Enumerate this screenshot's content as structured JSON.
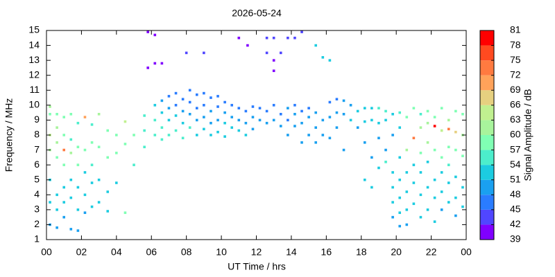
{
  "chart_data": {
    "type": "scatter",
    "title": "2026-05-24",
    "x_label": "UT Time / hrs",
    "y_label": "Frequency / MHz",
    "colorbar_label": "Signal Amplitude / dB",
    "xlim": [
      0,
      24
    ],
    "ylim": [
      1,
      15
    ],
    "xticks": [
      {
        "value": 0,
        "label": "00"
      },
      {
        "value": 2,
        "label": "02"
      },
      {
        "value": 4,
        "label": "04"
      },
      {
        "value": 6,
        "label": "06"
      },
      {
        "value": 8,
        "label": "08"
      },
      10,
      12,
      14,
      16,
      18,
      20,
      22,
      {
        "value": 24,
        "label": "00"
      }
    ],
    "yticks": [
      1,
      2,
      3,
      4,
      5,
      6,
      7,
      8,
      9,
      10,
      11,
      12,
      13,
      14,
      15
    ],
    "colorbar_ticks": [
      39,
      42,
      45,
      48,
      51,
      54,
      57,
      60,
      63,
      66,
      69,
      72,
      75,
      78,
      81
    ],
    "colors": [
      "#8000ff",
      "#5046ff",
      "#2a7cff",
      "#1aa0f0",
      "#1ccce0",
      "#4ceecc",
      "#80ffb4",
      "#a8f49c",
      "#c0f090",
      "#e6d080",
      "#ffa25a",
      "#ff7a40",
      "#ff4a20",
      "#ff0000"
    ],
    "x": [
      0.2,
      0.2,
      0.2,
      0.2,
      0.2,
      0.2,
      0.2,
      0.6,
      0.6,
      0.6,
      0.6,
      0.6,
      0.6,
      0.6,
      1.0,
      1.0,
      1.0,
      1.0,
      1.0,
      1.0,
      1.0,
      1.4,
      1.4,
      1.4,
      1.4,
      1.4,
      1.4,
      1.8,
      1.8,
      1.8,
      1.8,
      1.8,
      1.8,
      2.2,
      2.2,
      2.2,
      2.2,
      2.2,
      2.6,
      2.6,
      2.6,
      2.6,
      2.6,
      3.0,
      3.0,
      3.0,
      3.0,
      3.5,
      3.5,
      3.5,
      3.5,
      4.0,
      4.0,
      4.0,
      4.5,
      4.5,
      4.5,
      5.0,
      5.0,
      5.6,
      5.6,
      5.6,
      6.2,
      6.2,
      6.2,
      6.6,
      6.6,
      6.6,
      6.6,
      7.0,
      7.0,
      7.0,
      7.0,
      7.4,
      7.4,
      7.4,
      7.4,
      7.8,
      7.8,
      7.8,
      7.8,
      8.2,
      8.2,
      8.2,
      8.2,
      8.6,
      8.6,
      8.6,
      8.6,
      9.0,
      9.0,
      9.0,
      9.0,
      9.4,
      9.4,
      9.4,
      9.4,
      9.8,
      9.8,
      9.8,
      9.8,
      10.2,
      10.2,
      10.2,
      10.2,
      10.6,
      10.6,
      10.6,
      11.0,
      11.0,
      11.0,
      11.4,
      11.4,
      11.4,
      11.8,
      11.8,
      11.8,
      12.2,
      12.2,
      12.6,
      12.6,
      12.6,
      12.6,
      13.0,
      13.0,
      13.0,
      13.0,
      13.0,
      13.4,
      13.4,
      13.4,
      13.8,
      13.8,
      13.8,
      13.8,
      14.2,
      14.2,
      14.2,
      14.2,
      14.6,
      14.6,
      14.6,
      14.6,
      15.0,
      15.0,
      15.0,
      15.4,
      15.4,
      15.4,
      15.4,
      15.8,
      15.8,
      15.8,
      16.2,
      16.2,
      16.2,
      16.2,
      16.6,
      16.6,
      16.6,
      17.0,
      17.0,
      17.0,
      17.4,
      17.4,
      17.8,
      17.8,
      5.8,
      5.8,
      6.2,
      6.2,
      6.6,
      8.0,
      9.0,
      11.0,
      11.5,
      18.2,
      18.2,
      18.2,
      18.2,
      18.6,
      18.6,
      18.6,
      18.6,
      19.0,
      19.0,
      19.0,
      19.0,
      19.4,
      19.4,
      19.4,
      19.4,
      19.8,
      19.8,
      19.8,
      19.8,
      19.8,
      19.8,
      20.2,
      20.2,
      20.2,
      20.2,
      20.2,
      20.2,
      20.2,
      20.6,
      20.6,
      20.6,
      20.6,
      20.6,
      20.6,
      21.0,
      21.0,
      21.0,
      21.0,
      21.0,
      21.4,
      21.4,
      21.4,
      21.4,
      21.4,
      21.4,
      21.8,
      21.8,
      21.8,
      21.8,
      21.8,
      21.8,
      22.2,
      22.2,
      22.2,
      22.2,
      22.2,
      22.2,
      22.6,
      22.6,
      22.6,
      22.6,
      22.6,
      22.6,
      23.0,
      23.0,
      23.0,
      23.0,
      23.0,
      23.0,
      23.4,
      23.4,
      23.4,
      23.4,
      23.4,
      23.4,
      23.8,
      23.8,
      23.8,
      23.8,
      23.8
    ],
    "y": [
      9.9,
      9.4,
      8.0,
      7.0,
      5.0,
      3.5,
      2.0,
      9.4,
      8.5,
      7.5,
      6.5,
      4.0,
      3.0,
      1.8,
      9.2,
      8.0,
      7.0,
      6.0,
      4.5,
      3.5,
      2.5,
      9.4,
      7.7,
      6.8,
      5.0,
      3.8,
      1.7,
      8.8,
      7.2,
      6.0,
      4.5,
      3.0,
      1.6,
      9.2,
      7.0,
      5.5,
      4.0,
      2.8,
      8.7,
      7.5,
      6.0,
      4.8,
      3.2,
      9.4,
      7.2,
      5.0,
      3.5,
      8.3,
      6.5,
      4.2,
      2.9,
      8.0,
      6.8,
      4.8,
      8.9,
      7.4,
      2.8,
      8.0,
      6.0,
      9.3,
      8.3,
      7.2,
      10.0,
      9.0,
      8.0,
      10.3,
      9.5,
      8.5,
      7.7,
      10.6,
      9.8,
      9.0,
      8.0,
      10.8,
      10.0,
      9.3,
      8.3,
      10.4,
      9.6,
      8.8,
      7.8,
      11.0,
      10.2,
      9.4,
      8.5,
      10.7,
      9.8,
      9.0,
      8.0,
      10.8,
      10.0,
      9.2,
      8.4,
      10.5,
      9.6,
      8.8,
      8.0,
      10.6,
      9.9,
      9.0,
      8.2,
      10.2,
      9.5,
      8.8,
      7.9,
      10.0,
      9.2,
      8.5,
      9.8,
      9.0,
      8.3,
      9.6,
      8.8,
      8.0,
      9.9,
      9.2,
      8.4,
      9.8,
      9.0,
      9.6,
      8.8,
      14.5,
      13.5,
      10.0,
      9.0,
      13.0,
      12.3,
      14.5,
      9.4,
      8.6,
      13.5,
      9.8,
      9.0,
      8.0,
      14.5,
      10.0,
      9.4,
      8.6,
      14.5,
      9.6,
      8.8,
      7.5,
      14.9,
      9.8,
      9.2,
      8.0,
      9.5,
      8.5,
      7.5,
      14.0,
      9.0,
      8.0,
      13.2,
      10.2,
      9.2,
      7.8,
      13.0,
      10.4,
      9.5,
      8.5,
      10.3,
      9.4,
      7.0,
      10.0,
      9.0,
      9.6,
      8.5,
      14.9,
      12.5,
      14.7,
      12.8,
      12.8,
      13.5,
      13.5,
      14.5,
      14.0,
      9.8,
      8.9,
      7.5,
      5.0,
      9.8,
      9.0,
      6.5,
      4.5,
      9.8,
      8.8,
      7.8,
      5.8,
      9.6,
      9.0,
      7.0,
      6.2,
      9.4,
      8.0,
      5.5,
      4.5,
      3.5,
      2.5,
      9.5,
      8.5,
      6.5,
      5.0,
      3.8,
      2.8,
      1.9,
      9.2,
      7.0,
      5.5,
      4.2,
      3.0,
      2.0,
      9.8,
      7.8,
      6.0,
      4.8,
      3.4,
      9.4,
      8.5,
      6.8,
      5.5,
      4.0,
      2.5,
      9.6,
      8.8,
      7.5,
      6.2,
      4.5,
      3.0,
      9.2,
      8.6,
      7.0,
      5.0,
      3.8,
      2.2,
      9.8,
      8.3,
      6.5,
      5.5,
      4.2,
      3.0,
      9.0,
      8.4,
      7.2,
      6.0,
      4.8,
      3.5,
      9.6,
      8.2,
      7.0,
      5.2,
      3.8,
      2.6,
      9.4,
      8.0,
      6.6,
      4.5,
      3.2
    ],
    "values": [
      60,
      57,
      63,
      60,
      51,
      51,
      48,
      57,
      60,
      60,
      57,
      51,
      51,
      48,
      57,
      57,
      72,
      57,
      51,
      51,
      48,
      57,
      54,
      60,
      51,
      51,
      48,
      54,
      57,
      57,
      51,
      51,
      48,
      69,
      57,
      51,
      51,
      48,
      54,
      57,
      54,
      51,
      51,
      60,
      57,
      51,
      51,
      57,
      57,
      51,
      51,
      57,
      57,
      51,
      63,
      57,
      57,
      57,
      54,
      54,
      54,
      54,
      51,
      54,
      54,
      48,
      51,
      54,
      54,
      45,
      48,
      51,
      54,
      45,
      45,
      51,
      54,
      45,
      48,
      51,
      54,
      45,
      45,
      48,
      54,
      45,
      45,
      48,
      51,
      45,
      45,
      48,
      51,
      45,
      48,
      48,
      51,
      45,
      45,
      48,
      51,
      45,
      48,
      51,
      51,
      45,
      48,
      51,
      45,
      48,
      51,
      45,
      48,
      51,
      45,
      48,
      48,
      45,
      48,
      45,
      48,
      42,
      42,
      45,
      48,
      39,
      39,
      42,
      45,
      48,
      42,
      48,
      45,
      48,
      42,
      45,
      48,
      48,
      42,
      45,
      48,
      48,
      42,
      45,
      48,
      48,
      48,
      48,
      48,
      51,
      48,
      48,
      51,
      45,
      48,
      48,
      51,
      45,
      48,
      48,
      48,
      48,
      48,
      48,
      51,
      51,
      48,
      39,
      39,
      39,
      39,
      39,
      42,
      42,
      39,
      39,
      51,
      51,
      48,
      51,
      51,
      51,
      48,
      51,
      54,
      51,
      48,
      51,
      54,
      51,
      48,
      54,
      51,
      48,
      51,
      51,
      51,
      48,
      54,
      51,
      51,
      51,
      51,
      51,
      48,
      57,
      60,
      51,
      51,
      51,
      48,
      57,
      72,
      51,
      51,
      51,
      54,
      60,
      57,
      51,
      51,
      51,
      57,
      60,
      60,
      51,
      51,
      51,
      57,
      78,
      57,
      51,
      51,
      51,
      57,
      63,
      57,
      51,
      51,
      48,
      60,
      72,
      57,
      54,
      51,
      51,
      57,
      66,
      57,
      51,
      51,
      48,
      57,
      60,
      57,
      51,
      51
    ]
  }
}
